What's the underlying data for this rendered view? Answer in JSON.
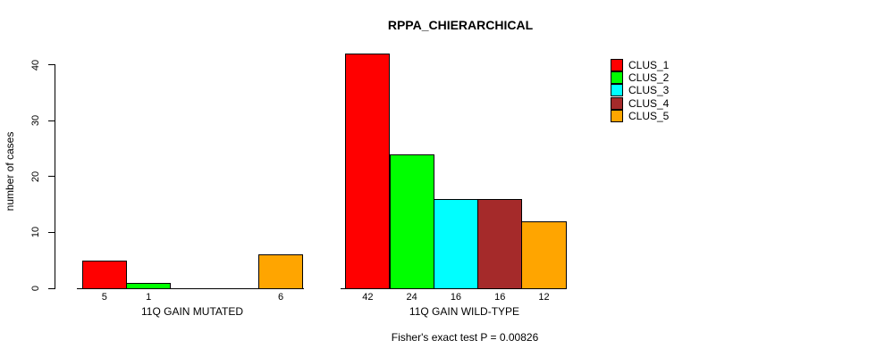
{
  "chart_data": {
    "type": "bar",
    "title": "RPPA_CHIERARCHICAL",
    "xlabel": "",
    "ylabel": "number of cases",
    "ylim": [
      0,
      42
    ],
    "yticks": [
      0,
      10,
      20,
      30,
      40
    ],
    "grid": false,
    "legend_position": "top-right",
    "clusters": [
      {
        "name": "CLUS_1",
        "color": "#FF0000"
      },
      {
        "name": "CLUS_2",
        "color": "#00FF00"
      },
      {
        "name": "CLUS_3",
        "color": "#00FFFF"
      },
      {
        "name": "CLUS_4",
        "color": "#A52A2A"
      },
      {
        "name": "CLUS_5",
        "color": "#FFA500"
      }
    ],
    "groups": [
      {
        "label": "11Q GAIN MUTATED",
        "categories": [
          "CLUS_1",
          "CLUS_2",
          "CLUS_3",
          "CLUS_4",
          "CLUS_5"
        ],
        "values": [
          5,
          1,
          0,
          0,
          6
        ],
        "bar_labels": [
          "5",
          "1",
          "",
          "",
          "6"
        ]
      },
      {
        "label": "11Q GAIN WILD-TYPE",
        "categories": [
          "CLUS_1",
          "CLUS_2",
          "CLUS_3",
          "CLUS_4",
          "CLUS_5"
        ],
        "values": [
          42,
          24,
          16,
          16,
          12
        ],
        "bar_labels": [
          "42",
          "24",
          "16",
          "16",
          "12"
        ]
      }
    ],
    "annotation": "Fisher's exact test P = 0.00826"
  },
  "colors": {
    "axis": "#000000",
    "text": "#000000",
    "background": "#FFFFFF"
  }
}
